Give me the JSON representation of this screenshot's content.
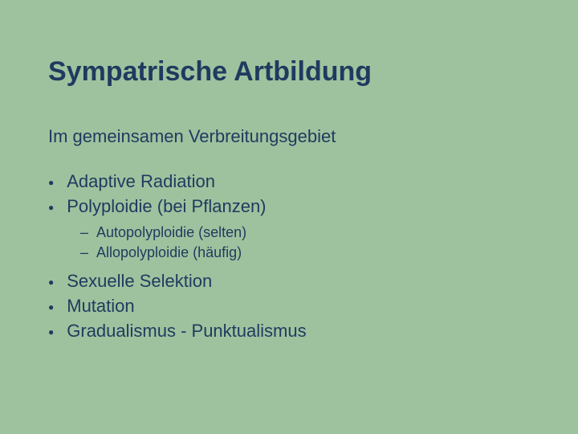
{
  "colors": {
    "background": "#9ec29e",
    "text": "#1f3a5f",
    "bullet": "#1f3a5f"
  },
  "typography": {
    "title_fontsize": 34,
    "subtitle_fontsize": 22,
    "level1_fontsize": 22,
    "level2_fontsize": 18,
    "font_family": "Arial"
  },
  "title": "Sympatrische Artbildung",
  "subtitle": "Im gemeinsamen Verbreitungsgebiet",
  "items": [
    {
      "label": "Adaptive Radiation"
    },
    {
      "label": "Polyploidie (bei Pflanzen)",
      "sub": [
        {
          "label": "Autopolyploidie (selten)"
        },
        {
          "label": "Allopolyploidie (häufig)"
        }
      ]
    },
    {
      "label": "Sexuelle Selektion"
    },
    {
      "label": "Mutation"
    },
    {
      "label": "Gradualismus - Punktualismus"
    }
  ]
}
